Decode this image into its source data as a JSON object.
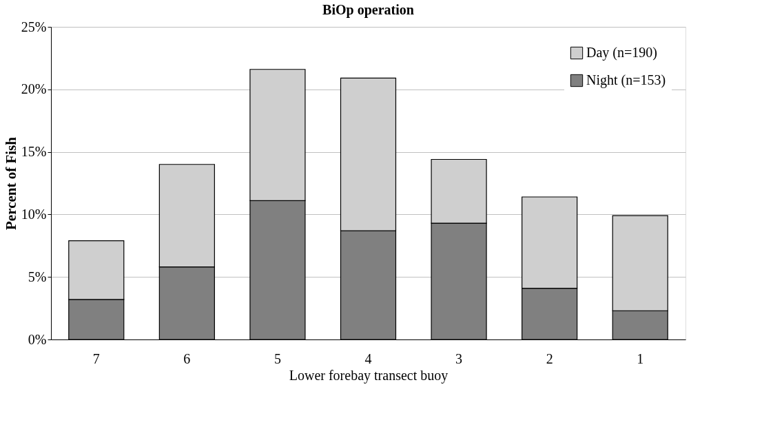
{
  "chart_data": {
    "type": "bar",
    "title": "BiOp operation",
    "xlabel": "Lower forebay transect buoy",
    "ylabel": "Percent of Fish",
    "categories": [
      "7",
      "6",
      "5",
      "4",
      "3",
      "2",
      "1"
    ],
    "stacked": true,
    "series": [
      {
        "name": "Night (n=153)",
        "color": "#808080",
        "values": [
          3.2,
          5.8,
          11.1,
          8.7,
          9.3,
          4.1,
          2.3
        ]
      },
      {
        "name": "Day (n=190)",
        "color": "#cfcfcf",
        "values": [
          4.7,
          8.2,
          10.5,
          12.2,
          5.1,
          7.3,
          7.6
        ]
      }
    ],
    "ylim": [
      0,
      25
    ],
    "yticks": [
      {
        "value": 0,
        "label": "0%"
      },
      {
        "value": 5,
        "label": "5%"
      },
      {
        "value": 10,
        "label": "10%"
      },
      {
        "value": 15,
        "label": "15%"
      },
      {
        "value": 20,
        "label": "20%"
      },
      {
        "value": 25,
        "label": "25%"
      }
    ],
    "grid": "y",
    "legend": "top right"
  }
}
